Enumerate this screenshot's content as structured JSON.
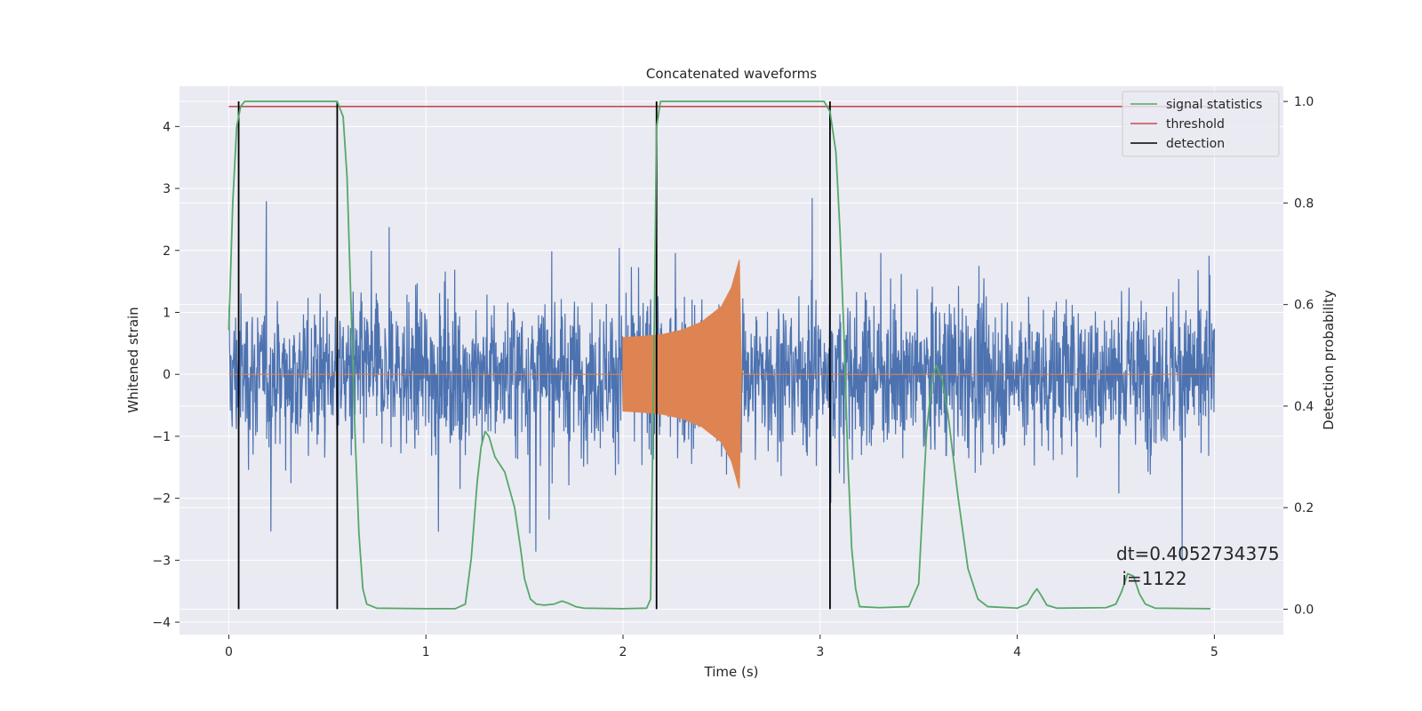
{
  "chart_data": {
    "type": "line",
    "title": "Concatenated waveforms",
    "xlabel": "Time (s)",
    "ylabel": "Whitened strain",
    "y2label": "Detection probability",
    "xlim": [
      -0.25,
      5.35
    ],
    "ylim": [
      -4.2,
      4.65
    ],
    "y2lim": [
      -0.05,
      1.03
    ],
    "grid": true,
    "legend_position": "top-right",
    "x_ticks": [
      "0",
      "1",
      "2",
      "3",
      "4",
      "5"
    ],
    "y_ticks": [
      "−4",
      "−3",
      "−2",
      "−1",
      "0",
      "1",
      "2",
      "3",
      "4"
    ],
    "y2_ticks": [
      "0.0",
      "0.2",
      "0.4",
      "0.6",
      "0.8",
      "1.0"
    ],
    "colors": {
      "background": "#eaeaf2",
      "grid": "#ffffff",
      "strain": "#4c72b0",
      "waveform": "#dd8452",
      "signal_statistics": "#55a868",
      "threshold": "#c44e52",
      "detection": "#000000"
    },
    "series": [
      {
        "name": "signal statistics",
        "axis": "right",
        "x": [
          0.0,
          0.02,
          0.04,
          0.06,
          0.08,
          0.1,
          0.5,
          0.55,
          0.58,
          0.6,
          0.62,
          0.64,
          0.66,
          0.68,
          0.7,
          0.75,
          1.0,
          1.15,
          1.2,
          1.23,
          1.26,
          1.28,
          1.3,
          1.32,
          1.35,
          1.4,
          1.45,
          1.48,
          1.5,
          1.53,
          1.56,
          1.6,
          1.65,
          1.69,
          1.72,
          1.76,
          1.8,
          2.0,
          2.12,
          2.14,
          2.16,
          2.17,
          2.19,
          2.21,
          2.25,
          3.02,
          3.05,
          3.08,
          3.1,
          3.12,
          3.14,
          3.16,
          3.18,
          3.2,
          3.3,
          3.45,
          3.5,
          3.52,
          3.54,
          3.57,
          3.59,
          3.62,
          3.65,
          3.7,
          3.75,
          3.8,
          3.85,
          4.0,
          4.05,
          4.08,
          4.1,
          4.12,
          4.15,
          4.2,
          4.45,
          4.5,
          4.53,
          4.56,
          4.59,
          4.62,
          4.65,
          4.7,
          4.98
        ],
        "values": [
          0.55,
          0.8,
          0.95,
          0.99,
          1.0,
          1.0,
          1.0,
          1.0,
          0.97,
          0.85,
          0.6,
          0.35,
          0.15,
          0.04,
          0.01,
          0.002,
          0.001,
          0.001,
          0.01,
          0.1,
          0.25,
          0.32,
          0.35,
          0.34,
          0.3,
          0.27,
          0.2,
          0.12,
          0.06,
          0.02,
          0.01,
          0.008,
          0.01,
          0.016,
          0.012,
          0.005,
          0.002,
          0.001,
          0.002,
          0.02,
          0.6,
          0.95,
          1.0,
          1.0,
          1.0,
          1.0,
          0.98,
          0.9,
          0.75,
          0.55,
          0.3,
          0.12,
          0.04,
          0.005,
          0.003,
          0.005,
          0.05,
          0.2,
          0.35,
          0.46,
          0.48,
          0.45,
          0.38,
          0.22,
          0.08,
          0.02,
          0.005,
          0.002,
          0.01,
          0.03,
          0.04,
          0.028,
          0.008,
          0.002,
          0.003,
          0.01,
          0.035,
          0.07,
          0.065,
          0.03,
          0.01,
          0.002,
          0.001
        ]
      },
      {
        "name": "threshold",
        "axis": "right",
        "x": [
          0.0,
          4.98
        ],
        "values": [
          0.99,
          0.99
        ]
      },
      {
        "name": "detection",
        "axis": "right",
        "x_positions": [
          0.05,
          0.55,
          2.17,
          3.05
        ],
        "range": [
          0.0,
          1.0
        ]
      },
      {
        "axis": "left",
        "description_free": true,
        "x_range": [
          0.0,
          5.0
        ],
        "amplitude_envelope": 2.6
      },
      {
        "axis": "left",
        "x": [
          0.0,
          2.0,
          2.1,
          2.2,
          2.3,
          2.4,
          2.5,
          2.55,
          2.59,
          2.6,
          5.0
        ],
        "envelope": [
          0.0,
          0.6,
          0.62,
          0.65,
          0.72,
          0.85,
          1.1,
          1.4,
          1.85,
          0.1,
          0.0
        ]
      }
    ]
  },
  "legend": {
    "items": [
      {
        "label": "signal statistics",
        "color": "#55a868"
      },
      {
        "label": "threshold",
        "color": "#c44e52"
      },
      {
        "label": "detection",
        "color": "#000000"
      }
    ]
  },
  "annotation": {
    "line1": "dt=0.4052734375",
    "line2": " i=1122",
    "x": 4.5,
    "y_probability": 0.1
  }
}
